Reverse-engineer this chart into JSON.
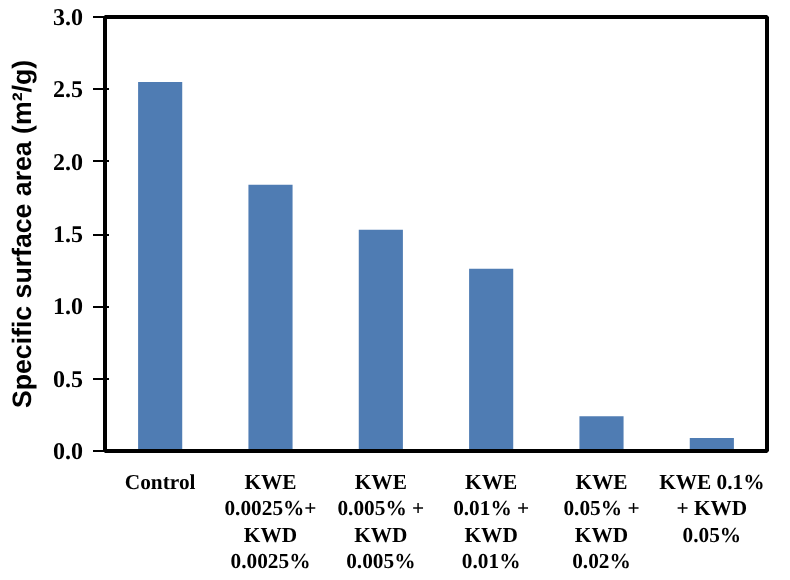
{
  "chart_data": {
    "type": "bar",
    "ylabel": "Specific surface area (m²/g)",
    "categories": [
      "Control",
      "KWE 0.0025%+ KWD 0.0025%",
      "KWE 0.005% + KWD 0.005%",
      "KWE 0.01% + KWD 0.01%",
      "KWE 0.05% + KWD 0.02%",
      "KWE 0.1% + KWD 0.05%"
    ],
    "values": [
      2.55,
      1.84,
      1.53,
      1.26,
      0.24,
      0.09
    ],
    "color": "#4f7cb3",
    "ylim": [
      0,
      3
    ],
    "yticks": [
      {
        "value": 0,
        "label": "0.0"
      },
      {
        "value": 0.5,
        "label": "0.5"
      },
      {
        "value": 1,
        "label": "1.0"
      },
      {
        "value": 1.5,
        "label": "1.5"
      },
      {
        "value": 2,
        "label": "2.0"
      },
      {
        "value": 2.5,
        "label": "2.5"
      },
      {
        "value": 3,
        "label": "3.0"
      }
    ],
    "grid": false
  }
}
